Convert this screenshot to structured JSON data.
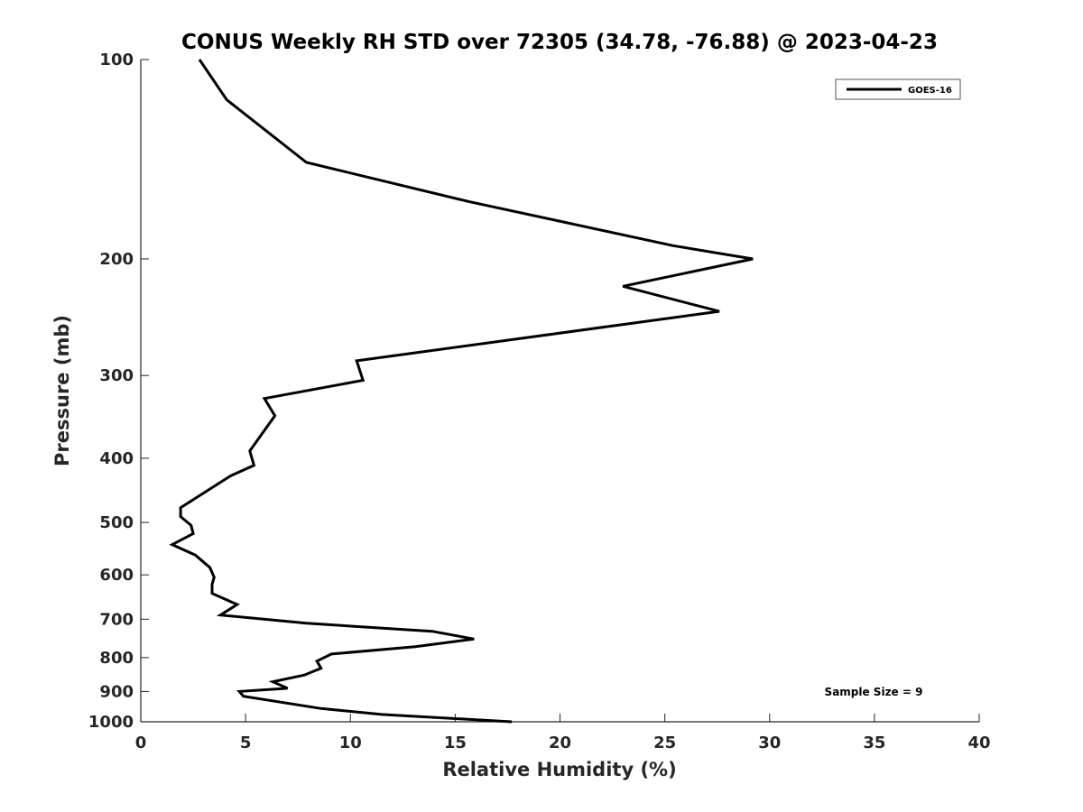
{
  "chart_data": {
    "type": "line",
    "title": "CONUS Weekly RH STD over 72305 (34.78, -76.88) @ 2023-04-23",
    "xlabel": "Relative Humidity (%)",
    "ylabel": "Pressure (mb)",
    "xlim": [
      0,
      40
    ],
    "ylim": [
      1000,
      100
    ],
    "y_scale": "log",
    "y_reversed": true,
    "grid": false,
    "legend_position": "top-right",
    "x_ticks": [
      "0",
      "5",
      "10",
      "15",
      "20",
      "25",
      "30",
      "35",
      "40"
    ],
    "y_ticks": [
      "100",
      "200",
      "300",
      "400",
      "500",
      "600",
      "700",
      "800",
      "900",
      "1000"
    ],
    "annotation": "Sample Size = 9",
    "series": [
      {
        "name": "GOES-16",
        "color": "#000000",
        "x": [
          2.8,
          4.1,
          7.9,
          15.7,
          25.4,
          29.2,
          23.0,
          27.6,
          10.3,
          10.6,
          5.9,
          6.4,
          5.2,
          5.4,
          4.3,
          1.9,
          1.9,
          2.4,
          2.5,
          1.5,
          2.6,
          3.3,
          3.5,
          3.4,
          3.4,
          4.6,
          3.8,
          7.9,
          13.9,
          15.9,
          13.1,
          9.1,
          8.4,
          8.6,
          7.8,
          6.3,
          7.0,
          4.7,
          4.9,
          8.6,
          11.5,
          17.7
        ],
        "y": [
          100,
          115,
          143,
          164,
          191,
          200,
          220,
          240,
          285,
          305,
          325,
          345,
          390,
          410,
          425,
          475,
          490,
          505,
          520,
          540,
          560,
          585,
          605,
          620,
          640,
          665,
          690,
          710,
          730,
          750,
          770,
          790,
          810,
          830,
          850,
          870,
          890,
          900,
          915,
          955,
          975,
          1000
        ]
      }
    ]
  }
}
